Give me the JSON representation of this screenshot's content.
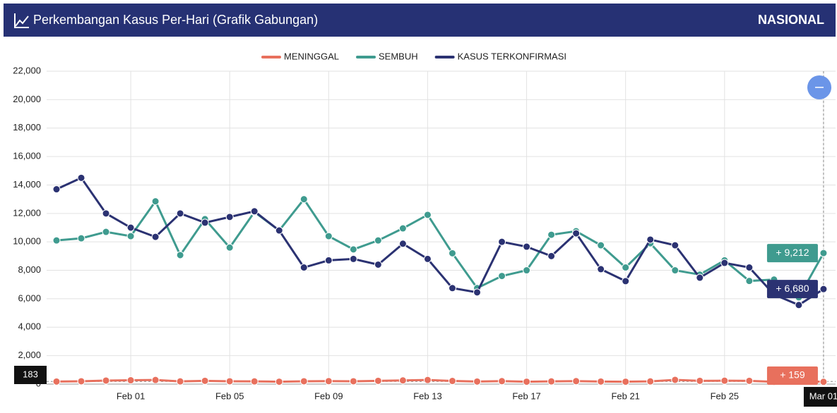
{
  "header": {
    "title": "Perkembangan Kasus Per-Hari (Grafik Gabungan)",
    "region": "NASIONAL"
  },
  "chart_data": {
    "type": "line",
    "categories": [
      null,
      null,
      null,
      "Feb 01",
      null,
      null,
      null,
      "Feb 05",
      null,
      null,
      null,
      "Feb 09",
      null,
      null,
      null,
      "Feb 13",
      null,
      null,
      null,
      "Feb 17",
      null,
      null,
      null,
      "Feb 21",
      null,
      null,
      null,
      "Feb 25",
      null,
      null,
      null,
      "Mar 01"
    ],
    "series": [
      {
        "name": "MENINGGAL",
        "color": "#e8705d",
        "values": [
          180,
          200,
          250,
          270,
          290,
          190,
          230,
          200,
          190,
          170,
          200,
          210,
          200,
          230,
          260,
          290,
          220,
          180,
          210,
          170,
          190,
          210,
          180,
          170,
          190,
          300,
          230,
          240,
          230,
          160,
          220,
          159
        ],
        "value_labels": [
          null,
          null,
          null,
          null,
          null,
          null,
          null,
          null,
          null,
          null,
          null,
          null,
          null,
          null,
          null,
          null,
          null,
          null,
          null,
          null,
          null,
          null,
          null,
          null,
          null,
          null,
          null,
          null,
          null,
          null,
          null,
          "+ 159"
        ]
      },
      {
        "name": "SEMBUH",
        "color": "#3f9b8f",
        "values": [
          10100,
          10250,
          10700,
          10400,
          12850,
          9070,
          11600,
          9600,
          12100,
          10800,
          13000,
          10400,
          9470,
          10100,
          10950,
          11900,
          9200,
          6750,
          7600,
          8000,
          10500,
          10750,
          9760,
          8200,
          9900,
          8000,
          7700,
          8700,
          7250,
          7350,
          6100,
          9212
        ],
        "value_labels": [
          null,
          null,
          null,
          null,
          null,
          null,
          null,
          null,
          null,
          null,
          null,
          null,
          null,
          null,
          null,
          null,
          null,
          null,
          null,
          null,
          null,
          null,
          null,
          null,
          null,
          null,
          null,
          null,
          null,
          null,
          null,
          "+ 9,212"
        ]
      },
      {
        "name": "KASUS TERKONFIRMASI",
        "color": "#2b3272",
        "values": [
          13700,
          14500,
          12000,
          11000,
          10350,
          12000,
          11350,
          11750,
          12150,
          10800,
          8200,
          8700,
          8800,
          8400,
          9870,
          8800,
          6750,
          6450,
          10000,
          9660,
          9000,
          10600,
          8080,
          7240,
          10160,
          9760,
          7480,
          8520,
          8200,
          6300,
          5560,
          6680
        ],
        "value_labels": [
          null,
          null,
          null,
          null,
          null,
          null,
          null,
          null,
          null,
          null,
          null,
          null,
          null,
          null,
          null,
          null,
          null,
          null,
          null,
          null,
          null,
          null,
          null,
          null,
          null,
          null,
          null,
          null,
          null,
          null,
          null,
          "+ 6,680"
        ]
      }
    ],
    "ylim": [
      0,
      22000
    ],
    "yticks": [
      0,
      {
        "value": 2000,
        "label": "2,000"
      },
      {
        "value": 4000,
        "label": "4,000"
      },
      {
        "value": 6000,
        "label": "6,000"
      },
      {
        "value": 8000,
        "label": "8,000"
      },
      {
        "value": 10000,
        "label": "10,000"
      },
      {
        "value": 12000,
        "label": "12,000"
      },
      {
        "value": 14000,
        "label": "14,000"
      },
      {
        "value": 16000,
        "label": "16,000"
      },
      {
        "value": 18000,
        "label": "18,000"
      },
      {
        "value": 20000,
        "label": "20,000"
      },
      {
        "value": 22000,
        "label": "22,000"
      }
    ],
    "grid": true,
    "legend": "top",
    "crosshair_label": "183"
  }
}
